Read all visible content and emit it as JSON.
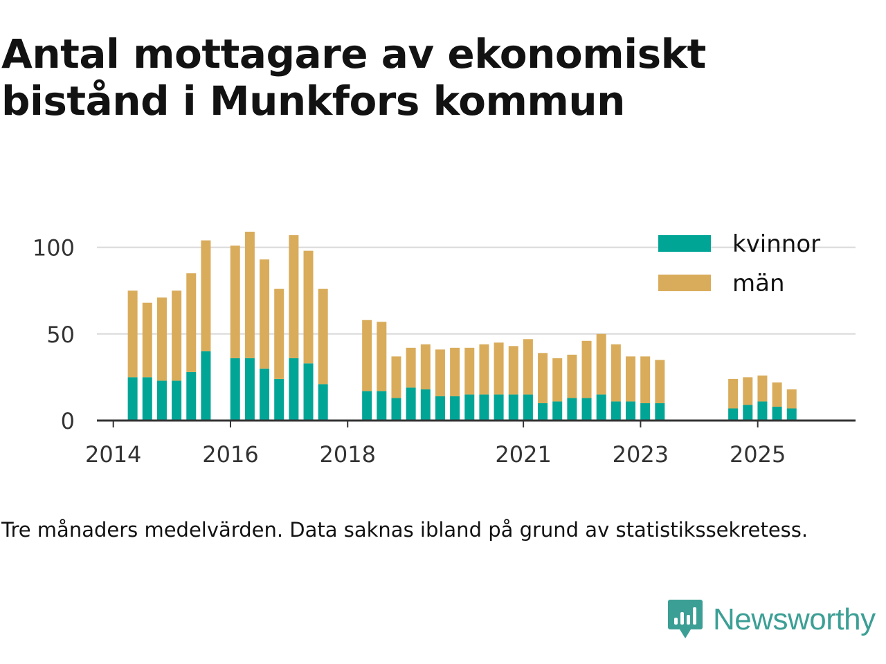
{
  "colors": {
    "kvinnor": "#00a596",
    "man": "#d9ac5b",
    "grid": "#d9d9d9",
    "axis": "#333333",
    "tick_text": "#333333",
    "brand": "#3c9f95"
  },
  "brand": {
    "name": "Newsworthy"
  },
  "chart_data": {
    "type": "bar",
    "stacked": true,
    "title": "Antal mottagare av ekonomiskt bistånd i Munkfors kommun",
    "subtitle": "",
    "footnote": "Tre månaders medelvärden. Data saknas ibland på grund av statistikssekretess.",
    "xlabel": "",
    "ylabel": "",
    "ylim": [
      0,
      115
    ],
    "yticks": [
      0,
      50,
      100
    ],
    "xlim": [
      2013.72,
      2026.67
    ],
    "xticks": [
      {
        "label": "2014",
        "value": 2014.0
      },
      {
        "label": "2016",
        "value": 2016.0
      },
      {
        "label": "2018",
        "value": 2018.0
      },
      {
        "label": "2021",
        "value": 2021.0
      },
      {
        "label": "2023",
        "value": 2023.0
      },
      {
        "label": "2025",
        "value": 2025.0
      }
    ],
    "grid": true,
    "legend": "top-right",
    "x": [
      2014.33,
      2014.58,
      2014.83,
      2015.08,
      2015.33,
      2015.58,
      2016.08,
      2016.33,
      2016.58,
      2016.83,
      2017.08,
      2017.33,
      2017.58,
      2018.33,
      2018.58,
      2018.83,
      2019.08,
      2019.33,
      2019.58,
      2019.83,
      2020.08,
      2020.33,
      2020.58,
      2020.83,
      2021.08,
      2021.33,
      2021.58,
      2021.83,
      2022.08,
      2022.33,
      2022.58,
      2022.83,
      2023.08,
      2023.33,
      2024.58,
      2024.83,
      2025.08,
      2025.33,
      2025.58
    ],
    "series": [
      {
        "name": "kvinnor",
        "values": [
          25,
          25,
          23,
          23,
          28,
          40,
          36,
          36,
          30,
          24,
          36,
          33,
          21,
          17,
          17,
          13,
          19,
          18,
          14,
          14,
          15,
          15,
          15,
          15,
          15,
          10,
          11,
          13,
          13,
          15,
          11,
          11,
          10,
          10,
          7,
          9,
          11,
          8,
          7
        ]
      },
      {
        "name": "män",
        "values": [
          50,
          43,
          48,
          52,
          57,
          64,
          65,
          73,
          63,
          52,
          71,
          65,
          55,
          41,
          40,
          24,
          23,
          26,
          27,
          28,
          27,
          29,
          30,
          28,
          32,
          29,
          25,
          25,
          33,
          35,
          33,
          26,
          27,
          25,
          17,
          16,
          15,
          14,
          11
        ]
      }
    ]
  }
}
